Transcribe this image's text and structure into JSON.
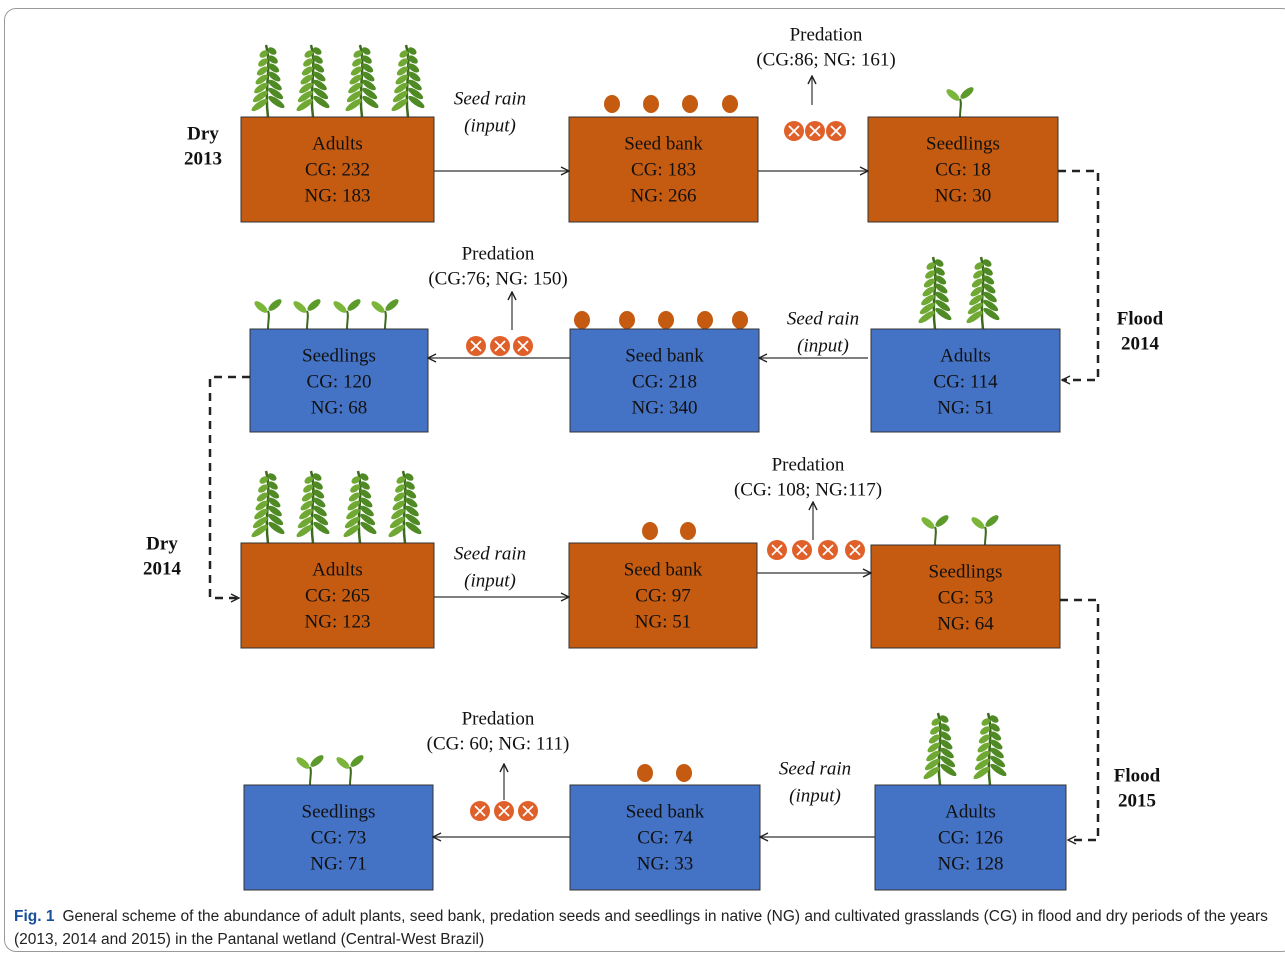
{
  "rows": [
    {
      "period": [
        "Dry",
        "2013"
      ],
      "rain": [
        "Seed rain",
        "(input)"
      ],
      "predation": [
        "Predation",
        "(CG:86; NG: 161)"
      ],
      "boxes": [
        [
          "Adults",
          "CG: 232",
          "NG: 183"
        ],
        [
          "Seed bank",
          "CG: 183",
          "NG: 266"
        ],
        [
          "Seedlings",
          "CG: 18",
          "NG: 30"
        ]
      ]
    },
    {
      "period": [
        "Flood",
        "2014"
      ],
      "rain": [
        "Seed rain",
        "(input)"
      ],
      "predation": [
        "Predation",
        "(CG:76; NG: 150)"
      ],
      "boxes": [
        [
          "Seedlings",
          "CG: 120",
          "NG: 68"
        ],
        [
          "Seed bank",
          "CG: 218",
          "NG: 340"
        ],
        [
          "Adults",
          "CG: 114",
          "NG: 51"
        ]
      ]
    },
    {
      "period": [
        "Dry",
        "2014"
      ],
      "rain": [
        "Seed rain",
        "(input)"
      ],
      "predation": [
        "Predation",
        "(CG: 108; NG:117)"
      ],
      "boxes": [
        [
          "Adults",
          "CG: 265",
          "NG: 123"
        ],
        [
          "Seed bank",
          "CG: 97",
          "NG: 51"
        ],
        [
          "Seedlings",
          "CG: 53",
          "NG: 64"
        ]
      ]
    },
    {
      "period": [
        "Flood",
        "2015"
      ],
      "rain": [
        "Seed rain",
        "(input)"
      ],
      "predation": [
        "Predation",
        "(CG: 60; NG: 111)"
      ],
      "boxes": [
        [
          "Seedlings",
          "CG: 73",
          "NG: 71"
        ],
        [
          "Seed bank",
          "CG: 74",
          "NG: 33"
        ],
        [
          "Adults",
          "CG: 126",
          "NG: 128"
        ]
      ]
    }
  ],
  "caption": {
    "label": "Fig. 1",
    "text": "General scheme of the abundance of adult plants, seed bank, predation seeds and seedlings in native (NG) and cultivated grasslands (CG) in flood and dry periods of the years (2013, 2014 and 2015) in the Pantanal wetland (Central-West Brazil)"
  }
}
